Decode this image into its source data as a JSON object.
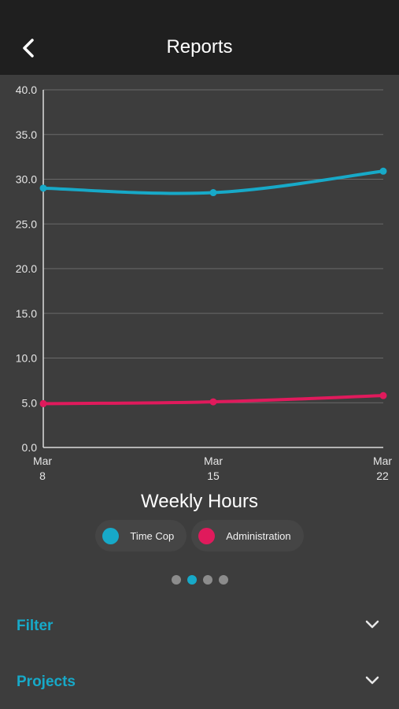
{
  "header": {
    "title": "Reports",
    "back_icon": "chevron-left-icon"
  },
  "chart_data": {
    "type": "line",
    "title": "Weekly Hours",
    "x": [
      "Mar 8",
      "Mar 15",
      "Mar 22"
    ],
    "x_ticks": [
      [
        "Mar",
        "8"
      ],
      [
        "Mar",
        "15"
      ],
      [
        "Mar",
        "22"
      ]
    ],
    "ylim": [
      0,
      40
    ],
    "yticks": [
      "0.0",
      "5.0",
      "10.0",
      "15.0",
      "20.0",
      "25.0",
      "30.0",
      "35.0",
      "40.0"
    ],
    "grid": true,
    "legend_position": "bottom",
    "series": [
      {
        "name": "Time Cop",
        "values": [
          29.0,
          28.5,
          30.9
        ],
        "color": "#17a9c8"
      },
      {
        "name": "Administration",
        "values": [
          4.9,
          5.1,
          5.8
        ],
        "color": "#e01a5c"
      }
    ]
  },
  "pager": {
    "count": 4,
    "active": 1,
    "active_color": "#17a9c8"
  },
  "sections": [
    {
      "label": "Filter",
      "icon": "chevron-down-icon"
    },
    {
      "label": "Projects",
      "icon": "chevron-down-icon"
    }
  ],
  "colors": {
    "accent": "#17a9c8",
    "header_bg": "#1f1f1f",
    "body_bg": "#3d3d3d"
  }
}
